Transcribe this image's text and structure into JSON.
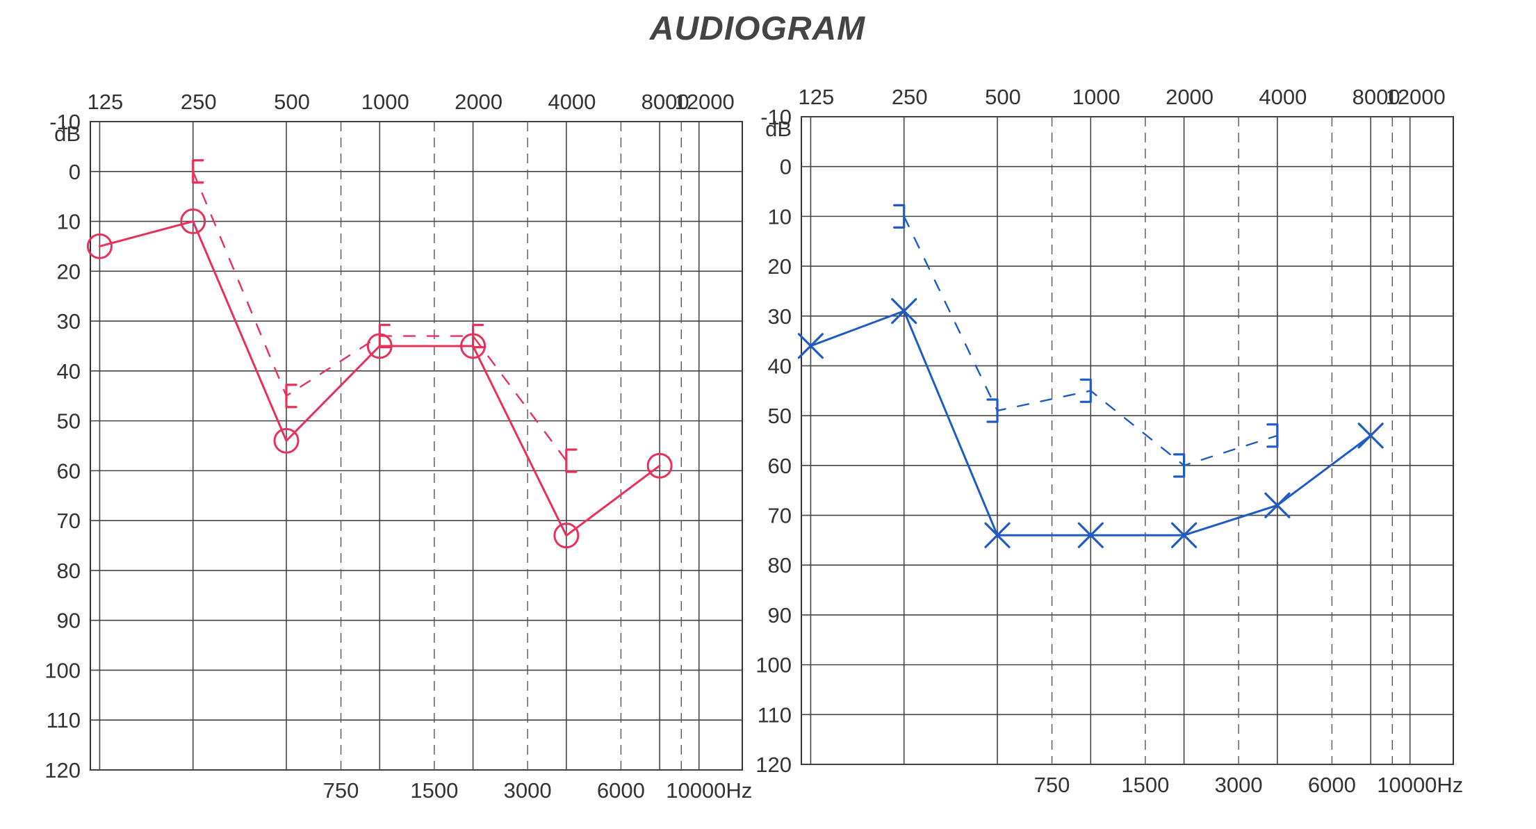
{
  "title": "AUDIOGRAM",
  "chart_data": [
    {
      "type": "line",
      "panel": "left",
      "color": "#e8315a",
      "x_scale": "log",
      "y_inverted": true,
      "ylim": [
        -10,
        120
      ],
      "ylabel": "dB",
      "ytick_labels": [
        "-10",
        "0",
        "10",
        "20",
        "30",
        "40",
        "50",
        "60",
        "70",
        "80",
        "90",
        "100",
        "110",
        "120"
      ],
      "top_tick_labels": [
        "125",
        "250",
        "500",
        "1000",
        "2000",
        "4000",
        "8000",
        "12000"
      ],
      "top_tick_values": [
        125,
        250,
        500,
        1000,
        2000,
        4000,
        8000,
        12000
      ],
      "bottom_tick_labels": [
        "750",
        "1500",
        "3000",
        "6000",
        "10000Hz"
      ],
      "bottom_tick_values": [
        750,
        1500,
        3000,
        6000,
        10000
      ],
      "grid": true,
      "series": [
        {
          "marker": "circle",
          "line_style": "solid",
          "x": [
            125,
            250,
            500,
            1000,
            2000,
            4000,
            8000
          ],
          "y": [
            15,
            10,
            54,
            35,
            35,
            73,
            59
          ]
        },
        {
          "marker": "bracket",
          "line_style": "dashed",
          "x": [
            250,
            500,
            1000,
            2000,
            4000
          ],
          "y": [
            0,
            45,
            33,
            33,
            58
          ]
        }
      ]
    },
    {
      "type": "line",
      "panel": "right",
      "color": "#1f5bc4",
      "x_scale": "log",
      "y_inverted": true,
      "ylim": [
        -10,
        120
      ],
      "ylabel": "dB",
      "ytick_labels": [
        "-10",
        "0",
        "10",
        "20",
        "30",
        "40",
        "50",
        "60",
        "70",
        "80",
        "90",
        "100",
        "110",
        "120"
      ],
      "top_tick_labels": [
        "125",
        "250",
        "500",
        "1000",
        "2000",
        "4000",
        "8000",
        "12000"
      ],
      "top_tick_values": [
        125,
        250,
        500,
        1000,
        2000,
        4000,
        8000,
        12000
      ],
      "bottom_tick_labels": [
        "750",
        "1500",
        "3000",
        "6000",
        "10000Hz"
      ],
      "bottom_tick_values": [
        750,
        1500,
        3000,
        6000,
        10000
      ],
      "grid": true,
      "series": [
        {
          "marker": "x",
          "line_style": "solid",
          "x": [
            125,
            250,
            500,
            1000,
            2000,
            4000,
            8000
          ],
          "y": [
            36,
            29,
            74,
            74,
            74,
            68,
            54
          ]
        },
        {
          "marker": "bracket",
          "line_style": "dashed",
          "x": [
            250,
            500,
            1000,
            2000,
            4000
          ],
          "y": [
            10,
            49,
            45,
            60,
            54
          ]
        }
      ]
    }
  ]
}
